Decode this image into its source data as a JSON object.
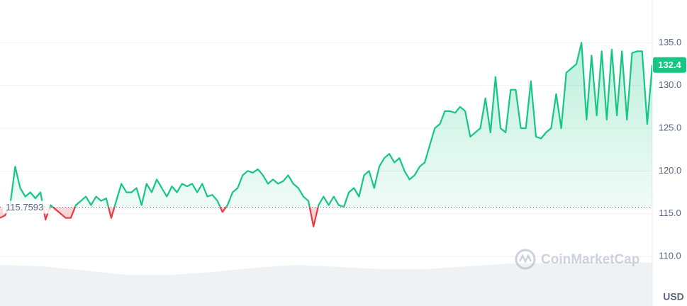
{
  "chart_data": {
    "type": "line",
    "values": [
      114.5,
      114.8,
      116,
      120.5,
      118,
      117,
      117.5,
      116.8,
      117.5,
      114.3,
      116,
      115.5,
      115,
      114.5,
      114.5,
      116,
      116.5,
      117,
      116,
      117,
      116.5,
      116.8,
      114.5,
      116.5,
      118.5,
      117.5,
      117.5,
      118,
      116,
      118.5,
      117.5,
      119,
      118,
      117,
      118.2,
      117.5,
      118.5,
      118.2,
      118.5,
      117.5,
      118.5,
      117,
      117.2,
      116.5,
      115.2,
      116,
      117.5,
      118,
      119.5,
      120,
      119.8,
      120.2,
      119.5,
      118.5,
      119,
      118.5,
      118.8,
      119.5,
      118.5,
      118,
      117,
      116.5,
      113.5,
      116,
      117,
      116,
      117,
      116,
      115.8,
      117.5,
      118,
      117,
      119.5,
      120,
      118,
      120.5,
      121.5,
      122,
      121,
      121.5,
      120,
      119,
      119.5,
      120.5,
      121,
      123,
      125,
      125.5,
      127,
      127,
      126.8,
      127.5,
      127,
      124,
      124.5,
      125,
      128.5,
      124.5,
      131,
      125,
      124.5,
      129.5,
      129.5,
      125,
      125,
      130.5,
      124,
      123.8,
      124.5,
      125,
      129,
      125,
      131.5,
      132,
      132.5,
      135,
      126,
      133.5,
      126.5,
      134,
      126,
      134.2,
      126.5,
      134,
      126,
      133.8,
      134,
      134,
      125.5,
      132.4
    ],
    "baseline": 115.7593,
    "up_color": "#16c784",
    "down_color": "#ea3943",
    "ylim": [
      104.2,
      140
    ],
    "yticks": [
      {
        "value": 110,
        "label": "110.0"
      },
      {
        "value": 115,
        "label": "115.0"
      },
      {
        "value": 120,
        "label": "120.0"
      },
      {
        "value": 125,
        "label": "125.0"
      },
      {
        "value": 130,
        "label": "130.0"
      },
      {
        "value": 135,
        "label": "135.0"
      }
    ],
    "grid": true,
    "currency": "USD",
    "watermark": "CoinMarketCap"
  }
}
